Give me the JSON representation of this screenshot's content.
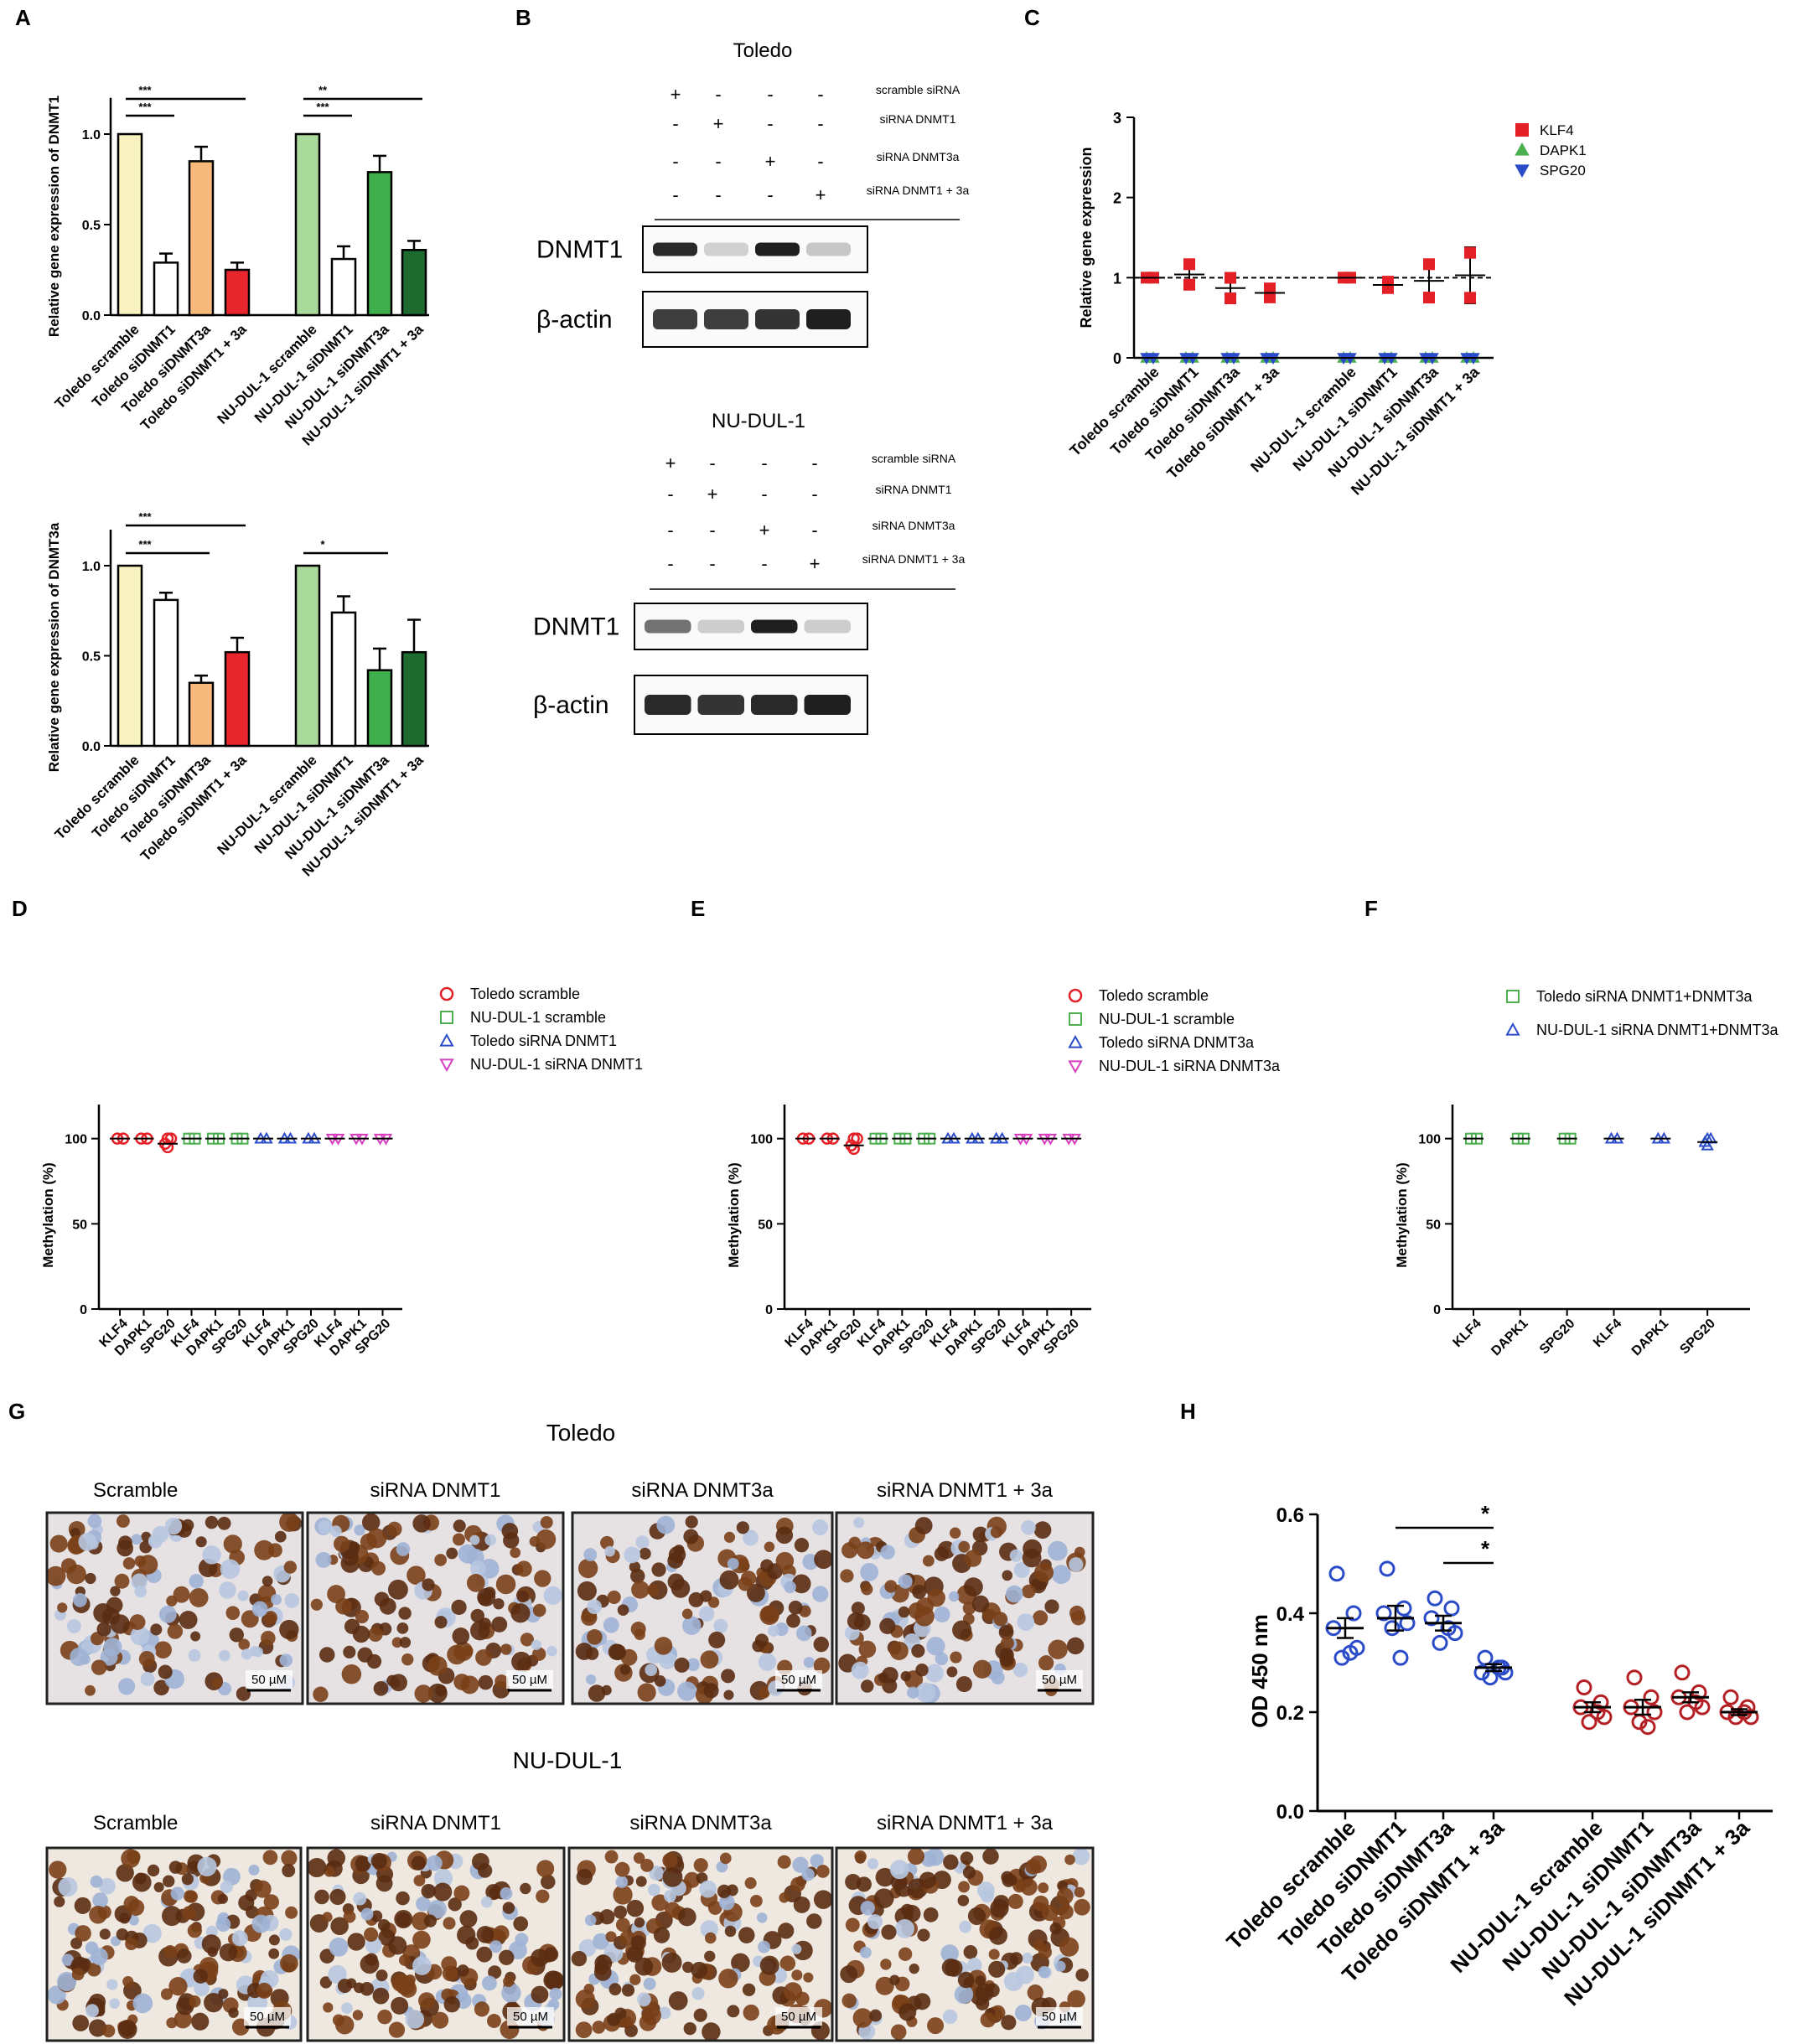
{
  "panels": {
    "A": {
      "label": "A",
      "charts": [
        {
          "type": "bar",
          "ylabel": "Relative gene expression of DNMT1",
          "ylim": [
            0,
            1.2
          ],
          "yticks": [
            "0.0",
            "0.5",
            "1.0"
          ],
          "categories": [
            "Toledo scramble",
            "Toledo siDNMT1",
            "Toledo siDNMT3a",
            "Toledo siDNMT1 + 3a",
            "NU-DUL-1 scramble",
            "NU-DUL-1 siDNMT1",
            "NU-DUL-1 siDNMT3a",
            "NU-DUL-1 siDNMT1 + 3a"
          ],
          "values": [
            1.0,
            0.29,
            0.85,
            0.25,
            1.0,
            0.31,
            0.79,
            0.36
          ],
          "errors": [
            0,
            0.05,
            0.08,
            0.04,
            0,
            0.07,
            0.09,
            0.05
          ],
          "colors": [
            "#f7f2bf",
            "#ffffff",
            "#f7b97a",
            "#e8262d",
            "#a9d99b",
            "#ffffff",
            "#3fae4c",
            "#1d6b2e"
          ],
          "significance": [
            {
              "from": 0,
              "to": 1,
              "text": "***"
            },
            {
              "from": 0,
              "to": 3,
              "text": "***"
            },
            {
              "from": 4,
              "to": 5,
              "text": "***"
            },
            {
              "from": 4,
              "to": 7,
              "text": "**"
            }
          ]
        },
        {
          "type": "bar",
          "ylabel": "Relative gene expression of DNMT3a",
          "ylim": [
            0,
            1.2
          ],
          "yticks": [
            "0.0",
            "0.5",
            "1.0"
          ],
          "categories": [
            "Toledo scramble",
            "Toledo siDNMT1",
            "Toledo siDNMT3a",
            "Toledo siDNMT1 + 3a",
            "NU-DUL-1 scramble",
            "NU-DUL-1 siDNMT1",
            "NU-DUL-1 siDNMT3a",
            "NU-DUL-1 siDNMT1 + 3a"
          ],
          "values": [
            1.0,
            0.81,
            0.35,
            0.52,
            1.0,
            0.74,
            0.42,
            0.52
          ],
          "errors": [
            0,
            0.04,
            0.04,
            0.08,
            0,
            0.09,
            0.12,
            0.18
          ],
          "colors": [
            "#f7f2bf",
            "#ffffff",
            "#f7b97a",
            "#e8262d",
            "#a9d99b",
            "#ffffff",
            "#3fae4c",
            "#1d6b2e"
          ],
          "significance": [
            {
              "from": 0,
              "to": 2,
              "text": "***"
            },
            {
              "from": 0,
              "to": 3,
              "text": "***"
            },
            {
              "from": 4,
              "to": 6,
              "text": "*"
            }
          ]
        }
      ]
    },
    "B": {
      "label": "B",
      "blots": [
        {
          "title": "Toledo",
          "conditions": [
            "scramble siRNA",
            "siRNA DNMT1",
            "siRNA DNMT3a",
            "siRNA DNMT1 + 3a"
          ],
          "signs": [
            [
              "+",
              "-",
              "-",
              "-"
            ],
            [
              "-",
              "+",
              "-",
              "-"
            ],
            [
              "-",
              "-",
              "+",
              "-"
            ],
            [
              "-",
              "-",
              "-",
              "+"
            ]
          ],
          "bands": [
            {
              "name": "DNMT1",
              "intensity": [
                0.9,
                0.1,
                0.95,
                0.15
              ]
            },
            {
              "name": "β-actin",
              "intensity": [
                0.8,
                0.8,
                0.85,
                0.95
              ]
            }
          ]
        },
        {
          "title": "NU-DUL-1",
          "conditions": [
            "scramble siRNA",
            "siRNA DNMT1",
            "siRNA DNMT3a",
            "siRNA DNMT1 + 3a"
          ],
          "signs": [
            [
              "+",
              "-",
              "-",
              "-"
            ],
            [
              "-",
              "+",
              "-",
              "-"
            ],
            [
              "-",
              "-",
              "+",
              "-"
            ],
            [
              "-",
              "-",
              "-",
              "+"
            ]
          ],
          "bands": [
            {
              "name": "DNMT1",
              "intensity": [
                0.55,
                0.12,
                0.95,
                0.12
              ]
            },
            {
              "name": "β-actin",
              "intensity": [
                0.9,
                0.85,
                0.9,
                0.95
              ]
            }
          ]
        }
      ]
    },
    "C": {
      "label": "C",
      "type": "scatter",
      "ylabel": "Relative gene expression",
      "ylim": [
        0,
        3
      ],
      "yticks": [
        "0",
        "1",
        "2",
        "3"
      ],
      "categories": [
        "Toledo scramble",
        "Toledo siDNMT1",
        "Toledo siDNMT3a",
        "Toledo siDNMT1 + 3a",
        "NU-DUL-1 scramble",
        "NU-DUL-1 siDNMT1",
        "NU-DUL-1 siDNMT3a",
        "NU-DUL-1 siDNMT1 + 3a"
      ],
      "series": [
        {
          "name": "KLF4",
          "color": "#e32026",
          "marker": "square",
          "mean": [
            1.0,
            1.04,
            0.87,
            0.81,
            1.0,
            0.91,
            0.96,
            1.03
          ],
          "err": [
            0.0,
            0.16,
            0.16,
            0.07,
            0.0,
            0.05,
            0.26,
            0.35
          ]
        },
        {
          "name": "DAPK1",
          "color": "#4caf50",
          "marker": "triangle",
          "mean": [
            0,
            0,
            0,
            0,
            0,
            0,
            0,
            0
          ],
          "err": [
            0,
            0,
            0,
            0,
            0,
            0,
            0,
            0
          ]
        },
        {
          "name": "SPG20",
          "color": "#2b4cc8",
          "marker": "triangle-down",
          "mean": [
            0,
            0,
            0,
            0,
            0,
            0,
            0,
            0
          ],
          "err": [
            0,
            0,
            0,
            0,
            0,
            0,
            0,
            0
          ]
        }
      ],
      "reference_line": 1
    },
    "D": {
      "label": "D",
      "ylabel": "Methylation (%)",
      "ylim": [
        0,
        120
      ],
      "yticks": [
        "0",
        "50",
        "100"
      ],
      "categories": [
        "KLF4",
        "DAPK1",
        "SPG20",
        "KLF4",
        "DAPK1",
        "SPG20",
        "KLF4",
        "DAPK1",
        "SPG20",
        "KLF4",
        "DAPK1",
        "SPG20"
      ],
      "legend": [
        {
          "name": "Toledo scramble",
          "color": "#e32026",
          "marker": "circle"
        },
        {
          "name": "NU-DUL-1 scramble",
          "color": "#4caf50",
          "marker": "square"
        },
        {
          "name": "Toledo siRNA DNMT1",
          "color": "#2b4cc8",
          "marker": "triangle"
        },
        {
          "name": "NU-DUL-1 siRNA DNMT1",
          "color": "#d63fbf",
          "marker": "triangle-down"
        }
      ],
      "values": [
        100,
        100,
        97,
        100,
        100,
        100,
        100,
        100,
        100,
        100,
        100,
        100
      ]
    },
    "E": {
      "label": "E",
      "ylabel": "Methylation (%)",
      "ylim": [
        0,
        120
      ],
      "yticks": [
        "0",
        "50",
        "100"
      ],
      "categories": [
        "KLF4",
        "DAPK1",
        "SPG20",
        "KLF4",
        "DAPK1",
        "SPG20",
        "KLF4",
        "DAPK1",
        "SPG20",
        "KLF4",
        "DAPK1",
        "SPG20"
      ],
      "legend": [
        {
          "name": "Toledo scramble",
          "color": "#e32026",
          "marker": "circle"
        },
        {
          "name": "NU-DUL-1 scramble",
          "color": "#4caf50",
          "marker": "square"
        },
        {
          "name": "Toledo siRNA DNMT3a",
          "color": "#2b4cc8",
          "marker": "triangle"
        },
        {
          "name": "NU-DUL-1 siRNA DNMT3a",
          "color": "#d63fbf",
          "marker": "triangle-down"
        }
      ],
      "values": [
        100,
        100,
        96,
        100,
        100,
        100,
        100,
        100,
        100,
        100,
        100,
        100
      ]
    },
    "F": {
      "label": "F",
      "ylabel": "Methylation (%)",
      "ylim": [
        0,
        120
      ],
      "yticks": [
        "0",
        "50",
        "100"
      ],
      "categories": [
        "KLF4",
        "DAPK1",
        "SPG20",
        "KLF4",
        "DAPK1",
        "SPG20"
      ],
      "legend": [
        {
          "name": "Toledo siRNA DNMT1+DNMT3a",
          "color": "#4caf50",
          "marker": "square"
        },
        {
          "name": "NU-DUL-1 siRNA DNMT1+DNMT3a",
          "color": "#2b4cc8",
          "marker": "triangle"
        }
      ],
      "values": [
        100,
        100,
        100,
        100,
        100,
        98
      ]
    },
    "G": {
      "label": "G",
      "groups": [
        {
          "title": "Toledo",
          "images": [
            "Scramble",
            "siRNA DNMT1",
            "siRNA DNMT3a",
            "siRNA DNMT1 + 3a"
          ],
          "scale": "50 µM"
        },
        {
          "title": "NU-DUL-1",
          "images": [
            "Scramble",
            "siRNA DNMT1",
            "siRNA DNMT3a",
            "siRNA DNMT1 + 3a"
          ],
          "scale": "50 µM"
        }
      ]
    },
    "H": {
      "label": "H",
      "type": "scatter",
      "ylabel": "OD  450 nm",
      "ylim": [
        0,
        0.6
      ],
      "yticks": [
        "0.0",
        "0.2",
        "0.4",
        "0.6"
      ],
      "categories": [
        "Toledo scramble",
        "Toledo siDNMT1",
        "Toledo siDNMT3a",
        "Toledo siDNMT1 + 3a",
        "NU-DUL-1 scramble",
        "NU-DUL-1 siDNMT1",
        "NU-DUL-1 siDNMT3a",
        "NU-DUL-1 siDNMT1 + 3a"
      ],
      "colors": [
        "#2b4cc8",
        "#2b4cc8",
        "#2b4cc8",
        "#2b4cc8",
        "#b52025",
        "#b52025",
        "#b52025",
        "#b52025"
      ],
      "points": [
        [
          0.48,
          0.4,
          0.37,
          0.33,
          0.31,
          0.32
        ],
        [
          0.49,
          0.41,
          0.4,
          0.38,
          0.37,
          0.31
        ],
        [
          0.43,
          0.41,
          0.39,
          0.36,
          0.34,
          0.37
        ],
        [
          0.31,
          0.29,
          0.28,
          0.28,
          0.27,
          0.29
        ],
        [
          0.25,
          0.22,
          0.21,
          0.19,
          0.18,
          0.2
        ],
        [
          0.27,
          0.23,
          0.21,
          0.2,
          0.18,
          0.17
        ],
        [
          0.28,
          0.24,
          0.23,
          0.21,
          0.2,
          0.22
        ],
        [
          0.23,
          0.21,
          0.2,
          0.19,
          0.19,
          0.2
        ]
      ],
      "means": [
        0.37,
        0.39,
        0.38,
        0.29,
        0.21,
        0.21,
        0.23,
        0.2
      ],
      "sems": [
        0.02,
        0.025,
        0.015,
        0.007,
        0.01,
        0.015,
        0.01,
        0.006
      ],
      "significance": [
        {
          "from": 1,
          "to": 3,
          "text": "*"
        },
        {
          "from": 2,
          "to": 3,
          "text": "*"
        }
      ]
    }
  }
}
